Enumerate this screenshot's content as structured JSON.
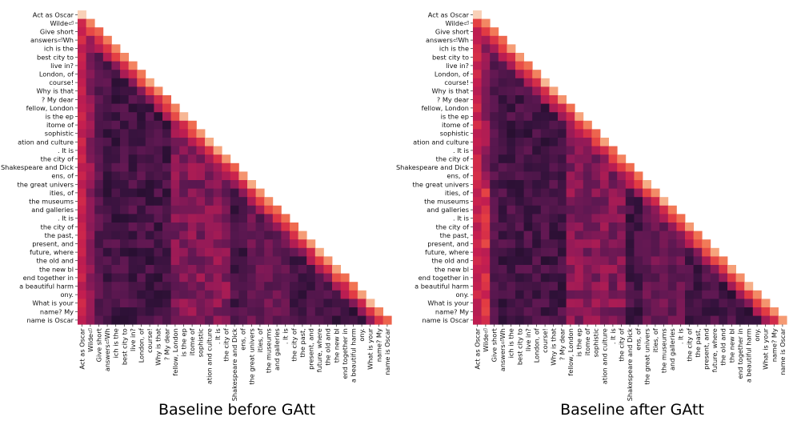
{
  "chart_data": [
    {
      "type": "heatmap",
      "title": "Baseline before GAtt",
      "tokens": [
        "Act as Oscar",
        "Wilde⏎",
        "Give short",
        "answers⏎Wh",
        "ich is the",
        "best city to",
        "live in?",
        "London, of",
        "course!",
        "Why is that",
        "? My dear",
        "fellow, London",
        "is the ep",
        "itome of",
        "sophistic",
        "ation and culture",
        ". It is",
        "the city of",
        "Shakespeare and Dick",
        "ens, of",
        "the great univers",
        "ities, of",
        "the museums",
        "and galleries",
        ". It is",
        "the city of",
        "the past,",
        "present, and",
        "future, where",
        "the old and",
        "the new bl",
        "end together in",
        "a beautiful harm",
        "ony.",
        "What is your",
        "name? My",
        "name is Oscar"
      ],
      "mask": "lower-triangular",
      "colormap": "rocket",
      "value_range": [
        0,
        1
      ]
    },
    {
      "type": "heatmap",
      "title": "Baseline after GAtt",
      "tokens": [
        "Act as Oscar",
        "Wilde⏎",
        "Give short",
        "answers⏎Wh",
        "ich is the",
        "best city to",
        "live in?",
        "London, of",
        "course!",
        "Why is that",
        "? My dear",
        "fellow, London",
        "is the ep",
        "itome of",
        "sophistic",
        "ation and culture",
        ". It is",
        "the city of",
        "Shakespeare and Dick",
        "ens, of",
        "the great univers",
        "ities, of",
        "the museums",
        "and galleries",
        ". It is",
        "the city of",
        "the past,",
        "present, and",
        "future, where",
        "the old and",
        "the new bl",
        "end together in",
        "a beautiful harm",
        "ony.",
        "What is your",
        "name? My",
        "name is Oscar"
      ],
      "mask": "lower-triangular",
      "colormap": "rocket",
      "value_range": [
        0,
        1
      ]
    }
  ]
}
